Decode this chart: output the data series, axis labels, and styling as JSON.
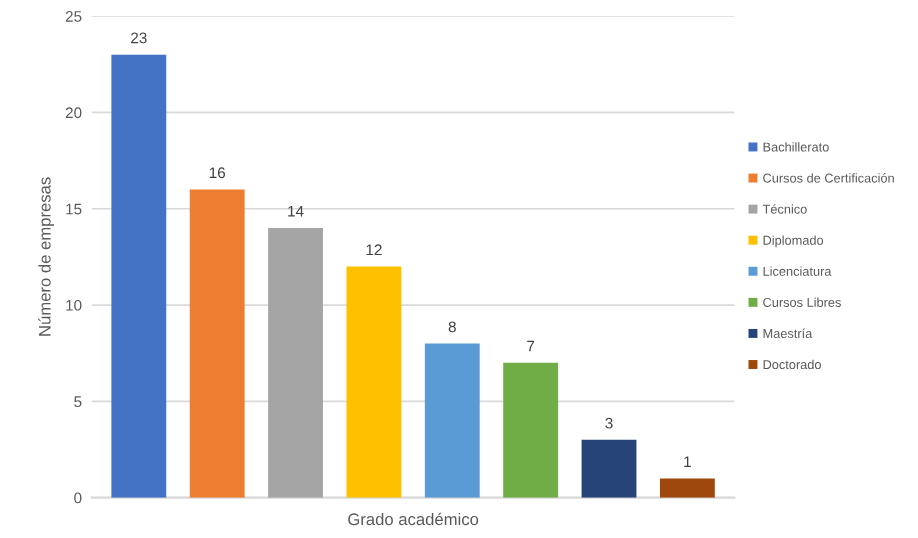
{
  "chart_data": {
    "type": "bar",
    "xlabel": "Grado académico",
    "ylabel": "Número de empresas",
    "categories": [
      null,
      null,
      null,
      null,
      null,
      null,
      null,
      null
    ],
    "series": [
      {
        "name": "Bachillerato",
        "color": "#4472c4",
        "values": [
          23,
          null,
          null,
          null,
          null,
          null,
          null,
          null
        ]
      },
      {
        "name": "Cursos de Certificación",
        "color": "#ed7d31",
        "values": [
          null,
          16,
          null,
          null,
          null,
          null,
          null,
          null
        ]
      },
      {
        "name": "Técnico",
        "color": "#a5a5a5",
        "values": [
          null,
          null,
          14,
          null,
          null,
          null,
          null,
          null
        ]
      },
      {
        "name": "Diplomado",
        "color": "#ffc000",
        "values": [
          null,
          null,
          null,
          12,
          null,
          null,
          null,
          null
        ]
      },
      {
        "name": "Licenciatura",
        "color": "#5b9bd5",
        "values": [
          null,
          null,
          null,
          null,
          8,
          null,
          null,
          null
        ]
      },
      {
        "name": "Cursos Libres",
        "color": "#70ad47",
        "values": [
          null,
          null,
          null,
          null,
          null,
          7,
          null,
          null
        ]
      },
      {
        "name": "Maestría",
        "color": "#264478",
        "values": [
          null,
          null,
          null,
          null,
          null,
          null,
          3,
          null
        ]
      },
      {
        "name": "Doctorado",
        "color": "#9e480e",
        "values": [
          null,
          null,
          null,
          null,
          null,
          null,
          null,
          1
        ]
      }
    ],
    "ylim": [
      0,
      25
    ],
    "yticks": [
      0,
      5,
      10,
      15,
      20,
      25
    ],
    "grid": "y",
    "legend": "right",
    "data_labels": true
  }
}
